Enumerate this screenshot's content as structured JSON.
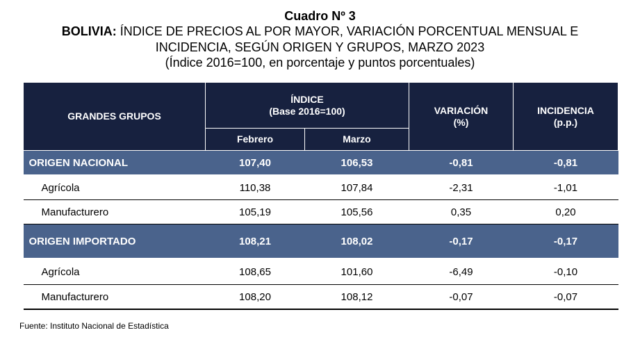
{
  "title": {
    "line1": "Cuadro Nº 3",
    "line2_bold": "BOLIVIA:",
    "line2_rest": " ÍNDICE DE PRECIOS AL POR MAYOR, VARIACIÓN PORCENTUAL MENSUAL E",
    "line3": "INCIDENCIA, SEGÚN ORIGEN Y GRUPOS, MARZO 2023",
    "line4": "(Índice 2016=100, en porcentaje y puntos porcentuales)"
  },
  "headers": {
    "groups": "GRANDES GRUPOS",
    "indice": "ÍNDICE",
    "base": "(Base 2016=100)",
    "variacion": "VARIACIÓN",
    "variacion_unit": "(%)",
    "incidencia": "INCIDENCIA",
    "incidencia_unit": "(p.p.)",
    "febrero": "Febrero",
    "marzo": "Marzo"
  },
  "rows": [
    {
      "label": "ORIGEN NACIONAL",
      "feb": "107,40",
      "mar": "106,53",
      "var": "-0,81",
      "inc": "-0,81"
    },
    {
      "label": "Agrícola",
      "feb": "110,38",
      "mar": "107,84",
      "var": "-2,31",
      "inc": "-1,01"
    },
    {
      "label": "Manufacturero",
      "feb": "105,19",
      "mar": "105,56",
      "var": "0,35",
      "inc": "0,20"
    },
    {
      "label": "ORIGEN IMPORTADO",
      "feb": "108,21",
      "mar": "108,02",
      "var": "-0,17",
      "inc": "-0,17"
    },
    {
      "label": "Agrícola",
      "feb": "108,65",
      "mar": "101,60",
      "var": "-6,49",
      "inc": "-0,10"
    },
    {
      "label": "Manufacturero",
      "feb": "108,20",
      "mar": "108,12",
      "var": "-0,07",
      "inc": "-0,07"
    }
  ],
  "source": "Fuente: Instituto Nacional de Estadística",
  "colors": {
    "header_bg": "#17213f",
    "group_bg": "#4a638c"
  }
}
